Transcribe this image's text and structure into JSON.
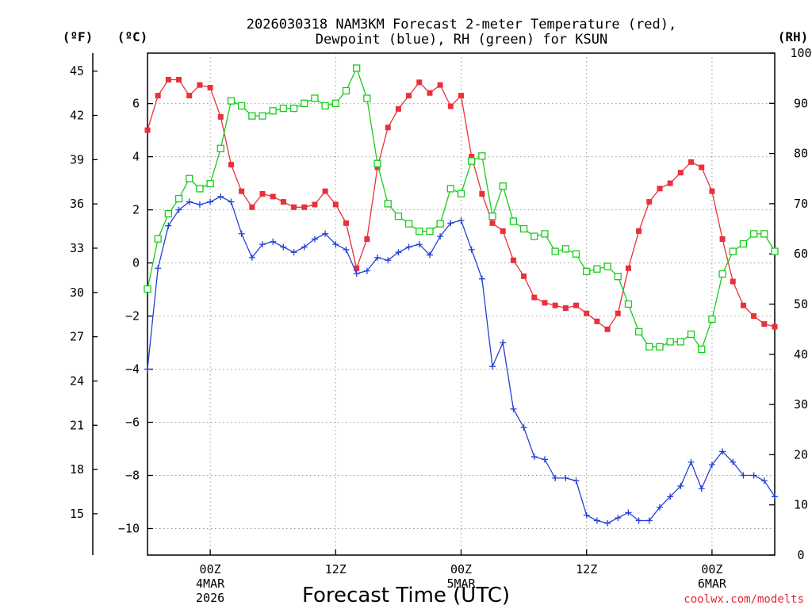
{
  "colors": {
    "temperature": "#e8313b",
    "dewpoint": "#2440d8",
    "rh": "#18cc1c",
    "credit": "#e0283a",
    "grid": "#999999"
  },
  "chart_data": {
    "type": "line",
    "title_line1": "2026030318 NAM3KM Forecast 2-meter Temperature (red),",
    "title_line2": "Dewpoint (blue), RH (green) for KSUN",
    "xlabel": "Forecast Time (UTC)",
    "credit": "coolwx.com/modelts",
    "units": {
      "fahrenheit": "(ºF)",
      "celsius": "(ºC)",
      "rh": "(RH)"
    },
    "x_hours_from_start": [
      0,
      60
    ],
    "ylim_celsius": [
      -11.0,
      7.9
    ],
    "ylim_rh": [
      0,
      100
    ],
    "celsius_ticks": [
      -10,
      -8,
      -6,
      -4,
      -2,
      0,
      2,
      4,
      6
    ],
    "celsius_tick_labels": [
      "−10",
      "−8",
      "−6",
      "−4",
      "−2",
      "0",
      "2",
      "4",
      "6"
    ],
    "fahrenheit_ticks": [
      15,
      18,
      21,
      24,
      27,
      30,
      33,
      36,
      39,
      42,
      45
    ],
    "fahrenheit_tick_labels": [
      "15",
      "18",
      "21",
      "24",
      "27",
      "30",
      "33",
      "36",
      "39",
      "42",
      "45"
    ],
    "rh_ticks": [
      0,
      10,
      20,
      30,
      40,
      50,
      60,
      70,
      80,
      90,
      100
    ],
    "rh_tick_labels": [
      "0",
      "10",
      "20",
      "30",
      "40",
      "50",
      "60",
      "70",
      "80",
      "90",
      "100"
    ],
    "x_ticks": [
      {
        "hour": 6,
        "label": "00Z",
        "date": "4MAR",
        "year": "2026"
      },
      {
        "hour": 18,
        "label": "12Z",
        "date": "",
        "year": ""
      },
      {
        "hour": 30,
        "label": "00Z",
        "date": "5MAR",
        "year": ""
      },
      {
        "hour": 42,
        "label": "12Z",
        "date": "",
        "year": ""
      },
      {
        "hour": 54,
        "label": "00Z",
        "date": "6MAR",
        "year": ""
      }
    ],
    "series": [
      {
        "name": "Temperature (°C)",
        "axis": "celsius",
        "marker": "filled-square",
        "values": [
          5.0,
          6.3,
          6.9,
          6.9,
          6.3,
          6.7,
          6.6,
          5.5,
          3.7,
          2.7,
          2.1,
          2.6,
          2.5,
          2.3,
          2.1,
          2.1,
          2.2,
          2.7,
          2.2,
          1.5,
          -0.2,
          0.9,
          3.6,
          5.1,
          5.8,
          6.3,
          6.8,
          6.4,
          6.7,
          5.9,
          6.3,
          4.0,
          2.6,
          1.5,
          1.2,
          0.1,
          -0.5,
          -1.3,
          -1.5,
          -1.6,
          -1.7,
          -1.6,
          -1.9,
          -2.2,
          -2.5,
          -1.9,
          -0.2,
          1.2,
          2.3,
          2.8,
          3.0,
          3.4,
          3.8,
          3.6,
          2.7,
          0.9,
          -0.7,
          -1.6,
          -2.0,
          -2.3,
          -2.4
        ]
      },
      {
        "name": "Dewpoint (°C)",
        "axis": "celsius",
        "marker": "plus",
        "values": [
          -4.0,
          -0.2,
          1.4,
          2.0,
          2.3,
          2.2,
          2.3,
          2.5,
          2.3,
          1.1,
          0.2,
          0.7,
          0.8,
          0.6,
          0.4,
          0.6,
          0.9,
          1.1,
          0.7,
          0.5,
          -0.4,
          -0.3,
          0.2,
          0.1,
          0.4,
          0.6,
          0.7,
          0.3,
          1.0,
          1.5,
          1.6,
          0.5,
          -0.6,
          -3.9,
          -3.0,
          -5.5,
          -6.2,
          -7.3,
          -7.4,
          -8.1,
          -8.1,
          -8.2,
          -9.5,
          -9.7,
          -9.8,
          -9.6,
          -9.4,
          -9.7,
          -9.7,
          -9.2,
          -8.8,
          -8.4,
          -7.5,
          -8.5,
          -7.6,
          -7.1,
          -7.5,
          -8.0,
          -8.0,
          -8.2,
          -8.8
        ]
      },
      {
        "name": "RH (%)",
        "axis": "rh",
        "marker": "open-square",
        "values": [
          53,
          63,
          68,
          71,
          75,
          73,
          74,
          81,
          90.5,
          89.5,
          87.5,
          87.5,
          88.5,
          89,
          89,
          90,
          91,
          89.5,
          90,
          92.5,
          97,
          91,
          78,
          70,
          67.5,
          66,
          64.5,
          64.5,
          66,
          73,
          72,
          78.5,
          79.5,
          67.5,
          73.5,
          66.5,
          65,
          63.5,
          64,
          60.5,
          61,
          60,
          56.5,
          57,
          57.5,
          55.5,
          50,
          44.5,
          41.5,
          41.5,
          42.5,
          42.5,
          44,
          41,
          47,
          56,
          60.5,
          62,
          64,
          64,
          60.5
        ]
      }
    ]
  }
}
